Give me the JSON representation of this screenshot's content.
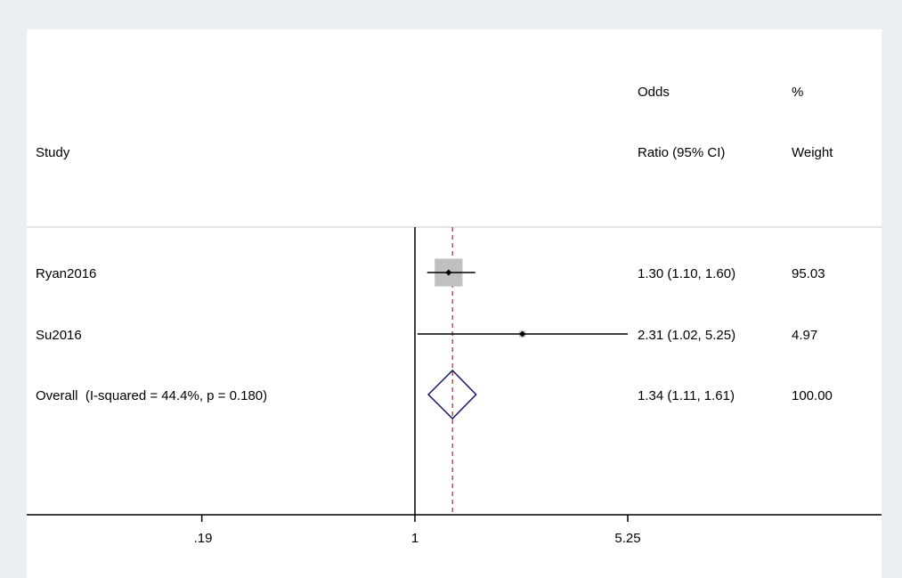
{
  "chart_data": {
    "type": "forest",
    "scale": "log",
    "headers": {
      "study": "Study",
      "or_line1": "Odds",
      "or_line2": "Ratio (95% CI)",
      "weight_line1": "%",
      "weight_line2": "Weight"
    },
    "x_ticks": [
      {
        "value": 0.19,
        "label": ".19"
      },
      {
        "value": 1,
        "label": "1"
      },
      {
        "value": 5.25,
        "label": "5.25"
      }
    ],
    "null_line_value": 1,
    "pooled_reference_value": 1.34,
    "studies": [
      {
        "label": "Ryan2016",
        "or": 1.3,
        "lower": 1.1,
        "upper": 1.6,
        "ci_text": "1.30 (1.10, 1.60)",
        "weight": 95.03,
        "weight_text": "95.03"
      },
      {
        "label": "Su2016",
        "or": 2.31,
        "lower": 1.02,
        "upper": 5.25,
        "ci_text": "2.31 (1.02, 5.25)",
        "weight": 4.97,
        "weight_text": "4.97"
      }
    ],
    "overall": {
      "label": "Overall  (I-squared = 44.4%, p = 0.180)",
      "or": 1.34,
      "lower": 1.11,
      "upper": 1.61,
      "ci_text": "1.34 (1.11, 1.61)",
      "weight_text": "100.00"
    },
    "colors": {
      "background": "#e9eff2",
      "panel": "#ffffff",
      "weight_box": "#c0c0c0",
      "diamond": "#1a1a66",
      "pooled_line": "#8b3a3a",
      "axis": "#000000"
    }
  }
}
